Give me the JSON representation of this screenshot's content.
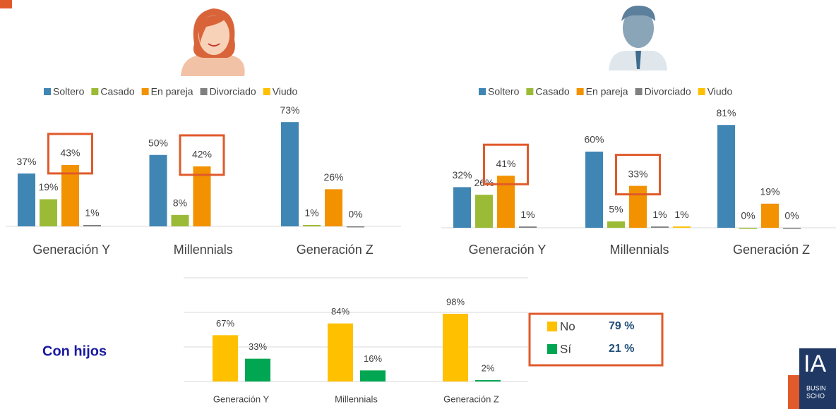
{
  "chart_data": [
    {
      "type": "bar",
      "categories": [
        "Generación Y",
        "Millennials",
        "Generación Z"
      ],
      "series": [
        {
          "name": "Soltero",
          "color": "#3f86b5",
          "values": [
            37,
            50,
            73
          ],
          "value_labels": [
            "37%",
            "50%",
            "73%"
          ]
        },
        {
          "name": "Casado",
          "color": "#9bbb37",
          "values": [
            19,
            8,
            1
          ],
          "value_labels": [
            "19%",
            "8%",
            "1%"
          ]
        },
        {
          "name": "En pareja",
          "color": "#f39200",
          "values": [
            43,
            42,
            26
          ],
          "value_labels": [
            "43%",
            "42%",
            "26%"
          ]
        },
        {
          "name": "Divorciado",
          "color": "#808080",
          "values": [
            1,
            null,
            0
          ],
          "value_labels": [
            "1%",
            null,
            "0%"
          ]
        },
        {
          "name": "Viudo",
          "color": "#ffc000",
          "values": [
            null,
            null,
            null
          ],
          "value_labels": [
            null,
            null,
            null
          ]
        }
      ],
      "ylim": [
        0,
        80
      ]
    },
    {
      "type": "bar",
      "categories": [
        "Generación Y",
        "Millennials",
        "Generación Z"
      ],
      "series": [
        {
          "name": "Soltero",
          "color": "#3f86b5",
          "values": [
            32,
            60,
            81
          ],
          "value_labels": [
            "32%",
            "60%",
            "81%"
          ]
        },
        {
          "name": "Casado",
          "color": "#9bbb37",
          "values": [
            26,
            5,
            0
          ],
          "value_labels": [
            "26%",
            "5%",
            "0%"
          ]
        },
        {
          "name": "En pareja",
          "color": "#f39200",
          "values": [
            41,
            33,
            19
          ],
          "value_labels": [
            "41%",
            "33%",
            "19%"
          ]
        },
        {
          "name": "Divorciado",
          "color": "#808080",
          "values": [
            1,
            1,
            0
          ],
          "value_labels": [
            "1%",
            "1%",
            "0%"
          ]
        },
        {
          "name": "Viudo",
          "color": "#ffc000",
          "values": [
            null,
            1,
            null
          ],
          "value_labels": [
            null,
            "1%",
            null
          ]
        }
      ],
      "ylim": [
        0,
        90
      ]
    },
    {
      "type": "bar",
      "title": "Con hijos",
      "categories": [
        "Generación Y",
        "Millennials",
        "Generación Z"
      ],
      "series": [
        {
          "name": "No",
          "color": "#ffc000",
          "values": [
            67,
            84,
            98
          ],
          "value_labels": [
            "67%",
            "84%",
            "98%"
          ],
          "total": "79 %"
        },
        {
          "name": "Sí",
          "color": "#00a651",
          "values": [
            33,
            16,
            2
          ],
          "value_labels": [
            "33%",
            "16%",
            "2%"
          ],
          "total": "21 %"
        }
      ],
      "ylim": [
        0,
        150
      ],
      "yticks": [
        0,
        50,
        100,
        150
      ],
      "grid": true
    }
  ],
  "logo": {
    "mark": "IA",
    "line1": "BUSIN",
    "line2": "SCHO"
  }
}
